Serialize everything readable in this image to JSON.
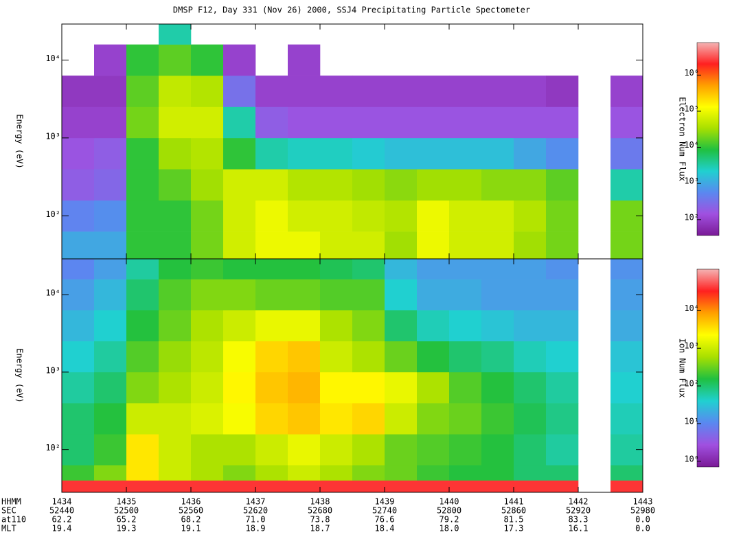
{
  "title": "DMSP F12, Day 331 (Nov 26) 2000, SSJ4 Precipitating Particle Spectometer",
  "time_axis": {
    "xticks_name": "SEC",
    "rows": [
      {
        "name": "HHMM",
        "labels": [
          "1434",
          "1435",
          "1436",
          "1437",
          "1438",
          "1439",
          "1440",
          "1441",
          "1442",
          "1443"
        ]
      },
      {
        "name": "at110",
        "labels": [
          "62.2",
          "65.2",
          "68.2",
          "71.0",
          "73.8",
          "76.6",
          "79.2",
          "81.5",
          "83.3",
          "0.0"
        ]
      },
      {
        "name": "MLT",
        "labels": [
          "19.4",
          "19.3",
          "19.1",
          "18.9",
          "18.7",
          "18.4",
          "18.0",
          "17.3",
          "16.1",
          "0.0"
        ]
      }
    ]
  },
  "chart_data": [
    {
      "type": "heatmap",
      "y_label": "Energy (eV)",
      "colorbar_label": "Electron Num Flux",
      "log_y": true,
      "xlim": [
        52440,
        52980
      ],
      "xticks": [
        52440,
        52500,
        52560,
        52620,
        52680,
        52740,
        52800,
        52860,
        52920,
        52980
      ],
      "ylim": [
        28,
        29000
      ],
      "yticks": [
        {
          "value": 100,
          "label": "10²"
        },
        {
          "value": 1000,
          "label": "10³"
        },
        {
          "value": 10000,
          "label": "10⁴"
        }
      ],
      "xbins": [
        52440,
        52470,
        52500,
        52530,
        52560,
        52590,
        52620,
        52650,
        52680,
        52710,
        52740,
        52770,
        52800,
        52830,
        52860,
        52890,
        52920,
        52950,
        52980
      ],
      "ybins": [
        28,
        63,
        158,
        398,
        1000,
        2512,
        6310,
        15849,
        29000
      ],
      "z": [
        [
          3.0,
          3.0,
          4.0,
          4.0,
          4.3,
          4.8,
          5.0,
          5.0,
          4.8,
          4.8,
          4.5,
          5.0,
          4.8,
          4.8,
          4.5,
          4.3,
          null,
          4.3
        ],
        [
          2.7,
          2.8,
          4.0,
          4.0,
          4.3,
          4.8,
          5.0,
          4.8,
          4.8,
          4.7,
          4.6,
          5.0,
          4.8,
          4.8,
          4.6,
          4.3,
          null,
          4.3
        ],
        [
          2.3,
          2.4,
          4.0,
          4.2,
          4.5,
          4.8,
          4.8,
          4.6,
          4.6,
          4.5,
          4.4,
          4.5,
          4.5,
          4.4,
          4.4,
          4.2,
          null,
          3.5
        ],
        [
          2.2,
          2.3,
          4.0,
          4.5,
          4.6,
          4.0,
          3.5,
          3.4,
          3.4,
          3.3,
          3.2,
          3.2,
          3.2,
          3.2,
          3.0,
          2.8,
          null,
          2.6
        ],
        [
          2.0,
          2.0,
          4.3,
          4.8,
          4.8,
          3.5,
          2.3,
          2.2,
          2.2,
          2.2,
          2.2,
          2.2,
          2.2,
          2.2,
          2.2,
          2.2,
          null,
          2.2
        ],
        [
          1.9,
          1.9,
          4.2,
          4.7,
          4.6,
          2.5,
          2.0,
          2.0,
          2.0,
          2.0,
          2.0,
          2.0,
          2.0,
          2.0,
          2.0,
          1.9,
          null,
          2.0
        ],
        [
          null,
          2.0,
          4.0,
          4.2,
          4.0,
          2.0,
          null,
          2.0,
          null,
          null,
          null,
          null,
          null,
          null,
          null,
          null,
          null,
          null
        ],
        [
          null,
          null,
          null,
          3.5,
          null,
          null,
          null,
          null,
          null,
          null,
          null,
          null,
          null,
          null,
          null,
          null,
          null,
          null
        ]
      ],
      "zlim": [
        1.56,
        6.9
      ],
      "zticks": [
        {
          "value": 2,
          "label": "10²"
        },
        {
          "value": 3,
          "label": "10³"
        },
        {
          "value": 4,
          "label": "10⁴"
        },
        {
          "value": 5,
          "label": "10⁵"
        },
        {
          "value": 6,
          "label": "10⁶"
        }
      ],
      "colors": [
        "#7a1a96",
        "#a050e0",
        "#5a88f0",
        "#20d0d0",
        "#20c040",
        "#a8e000",
        "#ffff00",
        "#ffa000",
        "#ff2020",
        "#f4b4b4"
      ]
    },
    {
      "type": "heatmap",
      "y_label": "Energy (eV)",
      "colorbar_label": "Ion Num Flux",
      "log_y": true,
      "xlim": [
        52440,
        52980
      ],
      "xticks": [
        52440,
        52500,
        52560,
        52620,
        52680,
        52740,
        52800,
        52860,
        52920,
        52980
      ],
      "ylim": [
        28,
        29000
      ],
      "yticks": [
        {
          "value": 100,
          "label": "10²"
        },
        {
          "value": 1000,
          "label": "10³"
        },
        {
          "value": 10000,
          "label": "10⁴"
        }
      ],
      "xbins": [
        52440,
        52470,
        52500,
        52530,
        52560,
        52590,
        52620,
        52650,
        52680,
        52710,
        52740,
        52770,
        52800,
        52830,
        52860,
        52890,
        52920,
        52950,
        52980
      ],
      "ybins": [
        28,
        40,
        63,
        158,
        398,
        1000,
        2512,
        6310,
        15849,
        29000
      ],
      "z": [
        [
          4.6,
          4.6,
          4.6,
          4.6,
          4.6,
          4.6,
          4.6,
          4.6,
          4.6,
          4.6,
          4.6,
          4.6,
          4.6,
          4.6,
          4.6,
          4.6,
          null,
          4.6
        ],
        [
          2.3,
          2.6,
          3.5,
          3.0,
          2.8,
          2.6,
          2.8,
          3.0,
          2.8,
          2.6,
          2.5,
          2.3,
          2.2,
          2.2,
          2.0,
          2.0,
          null,
          2.0
        ],
        [
          2.0,
          2.3,
          3.5,
          3.0,
          2.8,
          2.8,
          3.0,
          3.2,
          3.0,
          2.8,
          2.5,
          2.4,
          2.3,
          2.2,
          2.0,
          1.8,
          null,
          1.8
        ],
        [
          2.0,
          2.2,
          3.0,
          3.0,
          3.1,
          3.3,
          3.6,
          3.7,
          3.5,
          3.6,
          3.0,
          2.6,
          2.5,
          2.3,
          2.1,
          1.9,
          null,
          1.7
        ],
        [
          1.8,
          2.0,
          2.6,
          2.8,
          3.0,
          3.4,
          3.7,
          3.8,
          3.4,
          3.4,
          3.2,
          2.8,
          2.4,
          2.2,
          2.0,
          1.8,
          null,
          1.6
        ],
        [
          1.6,
          1.8,
          2.4,
          2.7,
          2.9,
          3.3,
          3.6,
          3.7,
          3.0,
          2.8,
          2.5,
          2.2,
          2.0,
          1.9,
          1.7,
          1.6,
          null,
          1.5
        ],
        [
          1.4,
          1.6,
          2.2,
          2.5,
          2.8,
          3.0,
          3.2,
          3.2,
          2.8,
          2.6,
          2.0,
          1.7,
          1.6,
          1.5,
          1.4,
          1.4,
          null,
          1.3
        ],
        [
          1.2,
          1.4,
          2.0,
          2.4,
          2.6,
          2.6,
          2.5,
          2.5,
          2.4,
          2.4,
          1.6,
          1.3,
          1.3,
          1.2,
          1.2,
          1.2,
          null,
          1.2
        ],
        [
          1.0,
          1.2,
          1.8,
          2.2,
          2.3,
          2.2,
          2.2,
          2.2,
          2.1,
          2.0,
          1.4,
          1.2,
          1.2,
          1.2,
          1.2,
          1.1,
          null,
          1.1
        ]
      ],
      "zlim": [
        -0.15,
        5.1
      ],
      "zticks": [
        {
          "value": 0,
          "label": "10⁰"
        },
        {
          "value": 1,
          "label": "10¹"
        },
        {
          "value": 2,
          "label": "10²"
        },
        {
          "value": 3,
          "label": "10³"
        },
        {
          "value": 4,
          "label": "10⁴"
        }
      ],
      "colors": [
        "#7a1a96",
        "#a050e0",
        "#5a88f0",
        "#20d0d0",
        "#20c040",
        "#a8e000",
        "#ffff00",
        "#ffa000",
        "#ff2020",
        "#f4b4b4"
      ]
    }
  ]
}
